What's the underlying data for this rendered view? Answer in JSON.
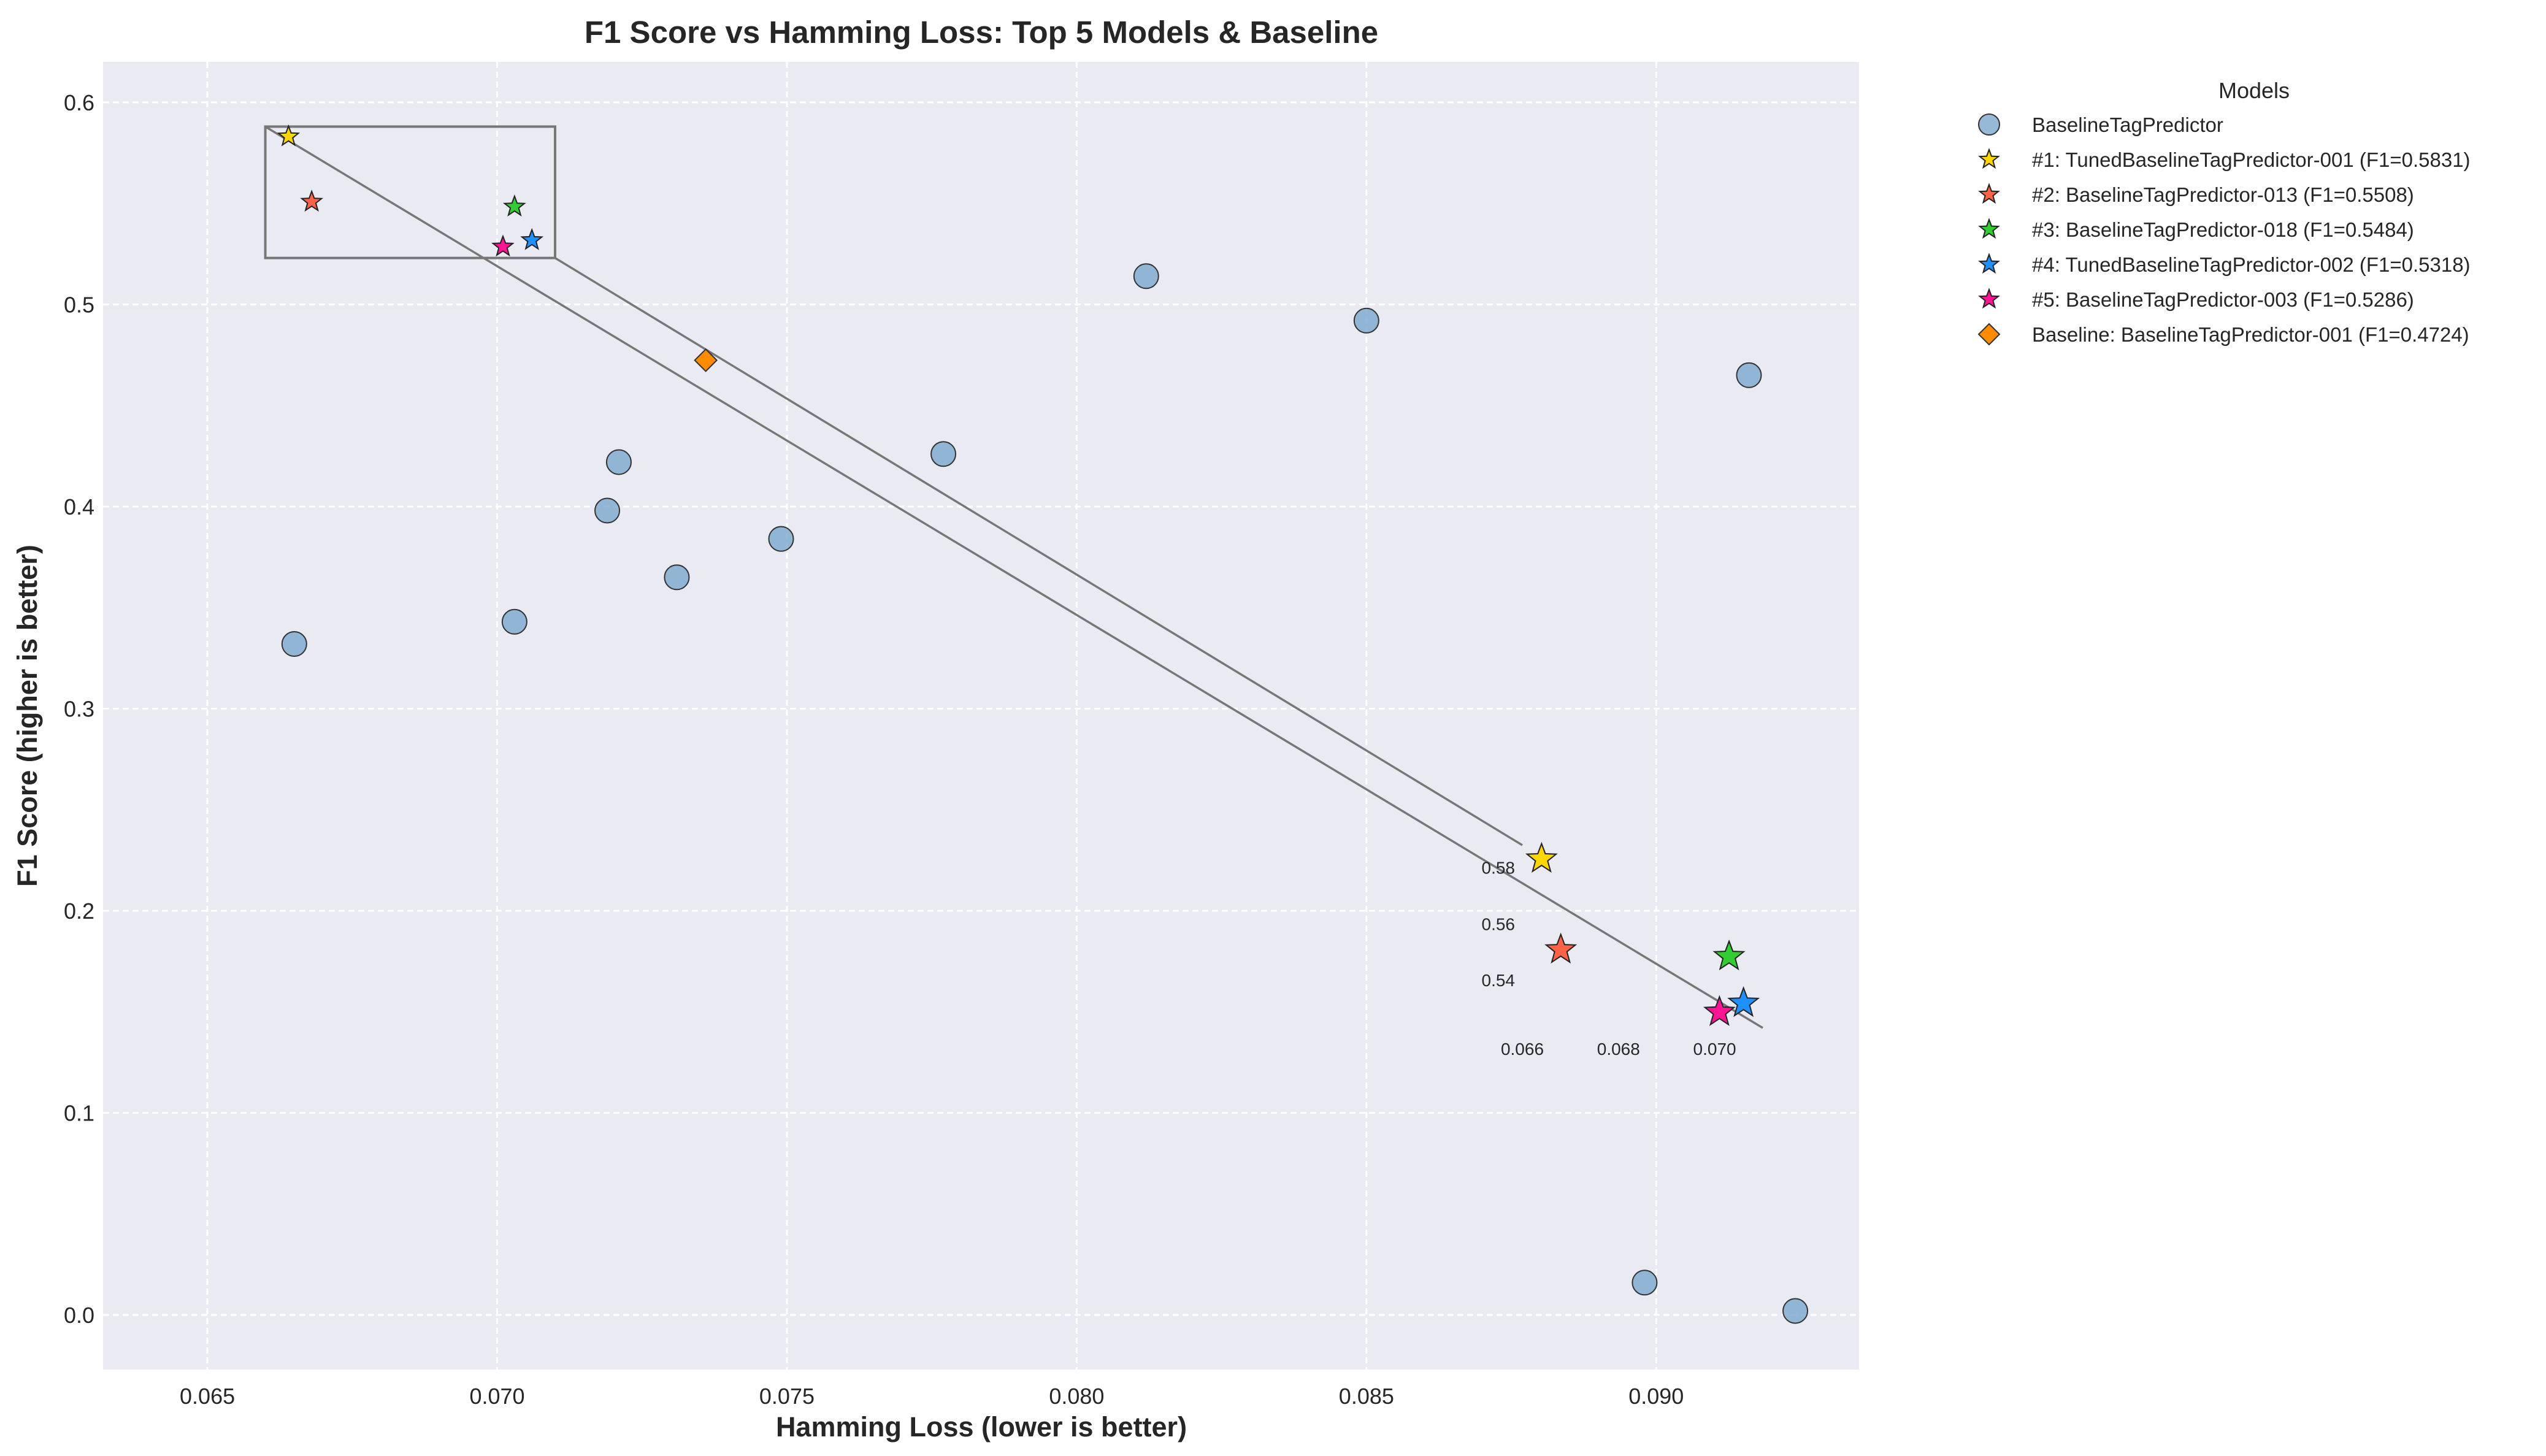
{
  "chart_data": {
    "type": "scatter",
    "title": "F1 Score vs Hamming Loss: Top 5 Models & Baseline",
    "xlabel": "Hamming Loss (lower is better)",
    "ylabel": "F1 Score (higher is better)",
    "xlim": [
      0.0632,
      0.0935
    ],
    "ylim": [
      -0.027,
      0.62
    ],
    "x_ticks": [
      "0.065",
      "0.070",
      "0.075",
      "0.080",
      "0.085",
      "0.090"
    ],
    "y_ticks": [
      "0.0",
      "0.1",
      "0.2",
      "0.3",
      "0.4",
      "0.5",
      "0.6"
    ],
    "grid": true,
    "legend_title": "Models",
    "legend_position": "outside right, top",
    "colors": {
      "plot_background": "#eaeaf2",
      "grid": "#ffffff",
      "baseline_models": "#7ba7cc",
      "rank1": "#ffd700",
      "rank2": "#ff6347",
      "rank3": "#32cd32",
      "rank4": "#1e90ff",
      "rank5": "#ff1493",
      "baseline": "#ff8c00",
      "zoom_box": "#777777"
    },
    "series": [
      {
        "name": "BaselineTagPredictor",
        "marker": "circle",
        "color": "#7ba7cc",
        "points": [
          {
            "x": 0.0665,
            "y": 0.332
          },
          {
            "x": 0.0703,
            "y": 0.343
          },
          {
            "x": 0.0719,
            "y": 0.398
          },
          {
            "x": 0.0721,
            "y": 0.422
          },
          {
            "x": 0.0731,
            "y": 0.365
          },
          {
            "x": 0.0749,
            "y": 0.384
          },
          {
            "x": 0.0777,
            "y": 0.426
          },
          {
            "x": 0.0812,
            "y": 0.514
          },
          {
            "x": 0.085,
            "y": 0.492
          },
          {
            "x": 0.0916,
            "y": 0.465
          },
          {
            "x": 0.0898,
            "y": 0.016
          },
          {
            "x": 0.0924,
            "y": 0.002
          }
        ]
      },
      {
        "name": "#1: TunedBaselineTagPredictor-001 (F1=0.5831)",
        "marker": "star",
        "color": "#ffd700",
        "points": [
          {
            "x": 0.0664,
            "y": 0.5831
          }
        ]
      },
      {
        "name": "#2: BaselineTagPredictor-013 (F1=0.5508)",
        "marker": "star",
        "color": "#ff6347",
        "points": [
          {
            "x": 0.0668,
            "y": 0.5508
          }
        ]
      },
      {
        "name": "#3: BaselineTagPredictor-018 (F1=0.5484)",
        "marker": "star",
        "color": "#32cd32",
        "points": [
          {
            "x": 0.0703,
            "y": 0.5484
          }
        ]
      },
      {
        "name": "#4: TunedBaselineTagPredictor-002 (F1=0.5318)",
        "marker": "star",
        "color": "#1e90ff",
        "points": [
          {
            "x": 0.0706,
            "y": 0.5318
          }
        ]
      },
      {
        "name": "#5: BaselineTagPredictor-003 (F1=0.5286)",
        "marker": "star",
        "color": "#ff1493",
        "points": [
          {
            "x": 0.0701,
            "y": 0.5286
          }
        ]
      },
      {
        "name": "Baseline: BaselineTagPredictor-001 (F1=0.4724)",
        "marker": "diamond",
        "color": "#ff8c00",
        "points": [
          {
            "x": 0.0736,
            "y": 0.4724
          }
        ]
      }
    ],
    "zoom_region": {
      "xlim": [
        0.066,
        0.071
      ],
      "ylim": [
        0.523,
        0.588
      ]
    },
    "inset": {
      "x_ticks": [
        "0.066",
        "0.068",
        "0.070"
      ],
      "y_ticks": [
        "0.54",
        "0.56",
        "0.58"
      ]
    }
  }
}
